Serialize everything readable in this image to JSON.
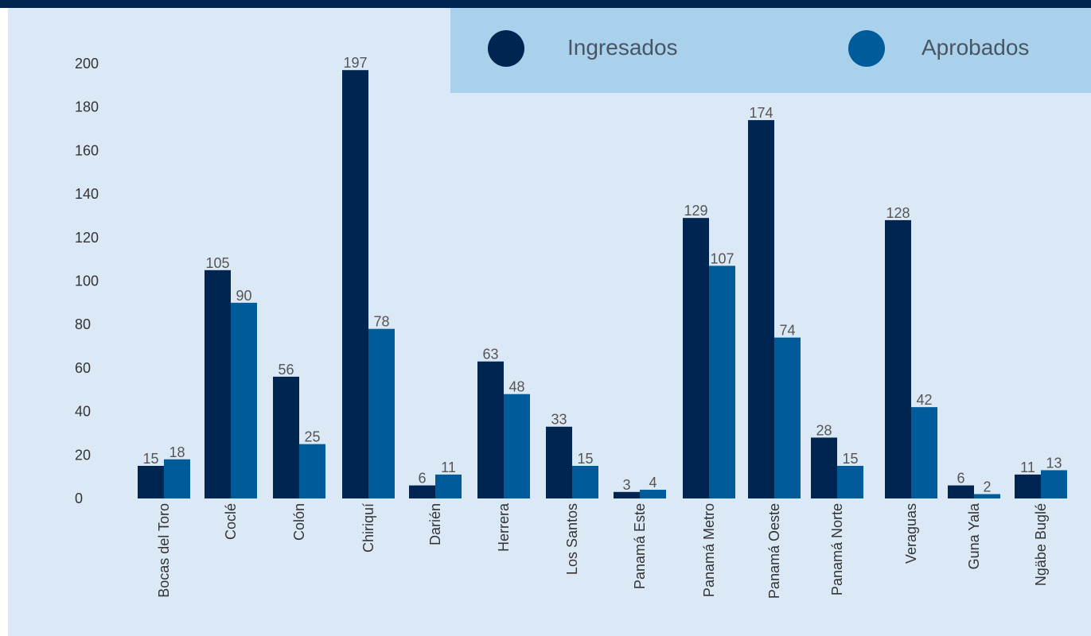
{
  "chart_data": {
    "type": "bar",
    "title": "",
    "xlabel": "",
    "ylabel": "",
    "ylim": [
      0,
      200
    ],
    "yticks": [
      0,
      20,
      40,
      60,
      80,
      100,
      120,
      140,
      160,
      180,
      200
    ],
    "grid": false,
    "legend_position": "top-right",
    "categories": [
      "Bocas del Toro",
      "Coclé",
      "Colón",
      "Chiriquí",
      "Darién",
      "Herrera",
      "Los Santos",
      "Panamá Este",
      "Panamá Metro",
      "Panamá Oeste",
      "Panamá Norte",
      "Veraguas",
      "Guna Yala",
      "Ngäbe Buglé"
    ],
    "series": [
      {
        "name": "Ingresados",
        "color": "#002550",
        "values": [
          15,
          105,
          56,
          197,
          6,
          63,
          33,
          3,
          129,
          174,
          28,
          128,
          6,
          11
        ]
      },
      {
        "name": "Aprobados",
        "color": "#005b9a",
        "values": [
          18,
          90,
          25,
          78,
          11,
          48,
          15,
          4,
          107,
          74,
          15,
          42,
          2,
          13
        ]
      }
    ]
  }
}
